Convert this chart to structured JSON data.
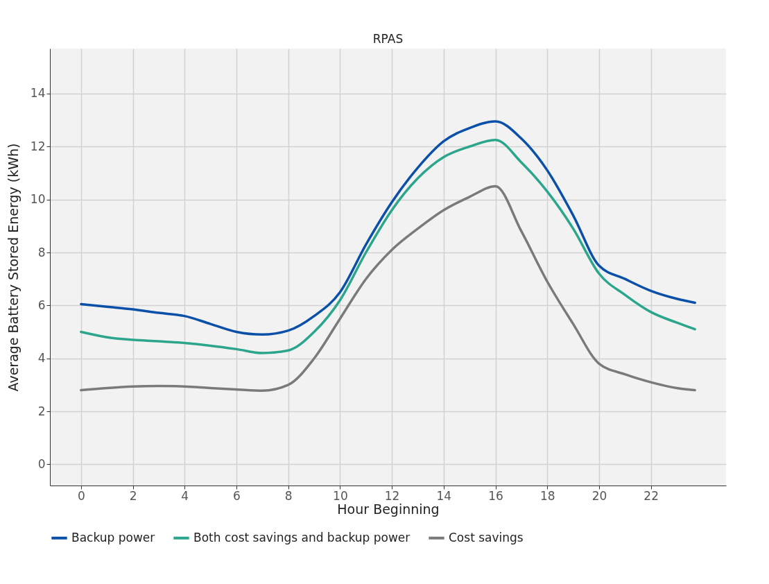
{
  "chart_data": {
    "type": "line",
    "title": "RPAS",
    "xlabel": "Hour Beginning",
    "ylabel": "Average Battery Stored Energy (kWh)",
    "x": [
      0,
      1,
      2,
      3,
      4,
      5,
      6,
      7,
      8,
      9,
      10,
      11,
      12,
      13,
      14,
      15,
      16,
      17,
      18,
      19,
      20,
      21,
      22,
      23,
      23.7
    ],
    "series": [
      {
        "name": "Backup power",
        "color": "#0a4fa8",
        "values": [
          6.05,
          5.95,
          5.85,
          5.72,
          5.6,
          5.3,
          5.0,
          4.9,
          5.05,
          5.6,
          6.5,
          8.3,
          9.9,
          11.2,
          12.2,
          12.7,
          12.95,
          12.3,
          11.1,
          9.4,
          7.5,
          7.0,
          6.55,
          6.25,
          6.1
        ]
      },
      {
        "name": "Both cost savings and backup power",
        "color": "#2ba58c",
        "values": [
          5.0,
          4.8,
          4.7,
          4.65,
          4.58,
          4.48,
          4.35,
          4.2,
          4.3,
          5.0,
          6.2,
          8.0,
          9.6,
          10.8,
          11.6,
          12.0,
          12.25,
          11.4,
          10.3,
          8.9,
          7.2,
          6.4,
          5.75,
          5.35,
          5.1
        ]
      },
      {
        "name": "Cost savings",
        "color": "#7a7a7a",
        "values": [
          2.8,
          2.88,
          2.94,
          2.96,
          2.94,
          2.88,
          2.83,
          2.78,
          3.0,
          4.0,
          5.5,
          7.0,
          8.1,
          8.9,
          9.6,
          10.1,
          10.5,
          8.8,
          6.9,
          5.3,
          3.8,
          3.4,
          3.1,
          2.88,
          2.8
        ]
      }
    ],
    "xlim": [
      -1.2,
      24.9
    ],
    "xticks": [
      0,
      2,
      4,
      6,
      8,
      10,
      12,
      14,
      16,
      18,
      20,
      22
    ],
    "ylim": [
      -0.8,
      15.7
    ],
    "yticks": [
      0,
      2,
      4,
      6,
      8,
      10,
      12,
      14
    ],
    "grid": true,
    "legend": "bottom",
    "marker": "none",
    "line_style": "solid"
  }
}
